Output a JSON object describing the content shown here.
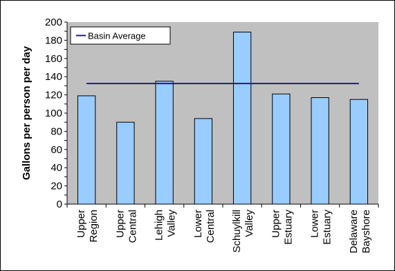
{
  "chart_data": {
    "type": "bar",
    "title": "",
    "xlabel": "",
    "ylabel": "Gallons per person per day",
    "ylim": [
      0,
      200
    ],
    "yticks": [
      0,
      10,
      20,
      30,
      40,
      50,
      60,
      70,
      80,
      90,
      100,
      110,
      120,
      130,
      140,
      150,
      160,
      170,
      180,
      190,
      200
    ],
    "yticks_labeled": [
      0,
      20,
      40,
      60,
      80,
      100,
      120,
      140,
      160,
      180,
      200
    ],
    "grid": false,
    "categories": [
      [
        "Upper",
        "Region"
      ],
      [
        "Upper",
        "Central"
      ],
      [
        "Lehigh",
        "Valley"
      ],
      [
        "Lower",
        "Central"
      ],
      [
        "Schuylkill",
        "Valley"
      ],
      [
        "Upper",
        "Estuary"
      ],
      [
        "Lower",
        "Estuary"
      ],
      [
        "Delaware",
        "Bayshore"
      ]
    ],
    "values": [
      119,
      90,
      135,
      94,
      189,
      121,
      117,
      115
    ],
    "reference_line": {
      "name": "Basin Average",
      "value": 132.5
    },
    "legend_position": "top-left",
    "colors": {
      "plot_background": "#c0c0c0",
      "bar_fill": "#99ccff",
      "bar_stroke": "#000000",
      "reference_line": "#1f1f7a"
    }
  }
}
